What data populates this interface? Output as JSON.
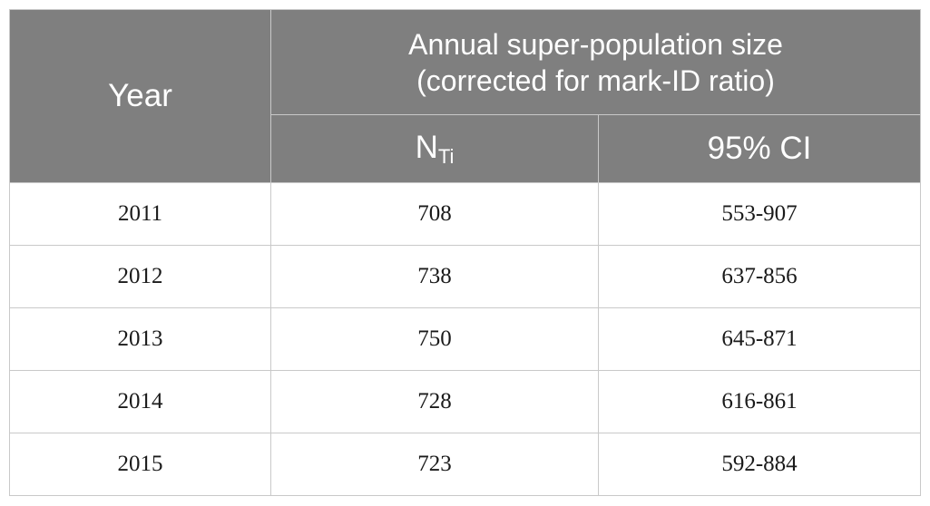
{
  "table": {
    "header": {
      "year": "Year",
      "group_line1": "Annual super-population size",
      "group_line2": "(corrected for mark-ID ratio)",
      "col_n_main": "N",
      "col_n_sub": "Ti",
      "col_ci": "95% CI"
    },
    "rows": [
      {
        "year": "2011",
        "n": "708",
        "ci": "553-907"
      },
      {
        "year": "2012",
        "n": "738",
        "ci": "637-856"
      },
      {
        "year": "2013",
        "n": "750",
        "ci": "645-871"
      },
      {
        "year": "2014",
        "n": "728",
        "ci": "616-861"
      },
      {
        "year": "2015",
        "n": "723",
        "ci": "592-884"
      }
    ]
  }
}
